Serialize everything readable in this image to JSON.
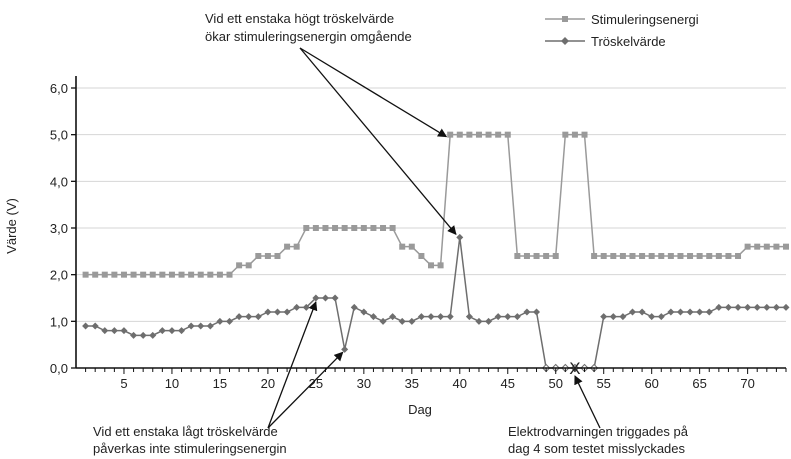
{
  "chart_data": {
    "type": "line",
    "xlabel": "Dag",
    "ylabel": "Värde (V)",
    "xlim": [
      0,
      74
    ],
    "ylim": [
      0,
      6
    ],
    "x_ticks": [
      5,
      10,
      15,
      20,
      25,
      30,
      35,
      40,
      45,
      50,
      55,
      60,
      65,
      70
    ],
    "y_ticks": [
      "0,0",
      "1,0",
      "2,0",
      "3,0",
      "4,0",
      "5,0",
      "6,0"
    ],
    "grid": "horizontal",
    "legend_position": "top-right",
    "colors": {
      "stim": "#9a9a9a",
      "thresh": "#6e6e6e",
      "axis": "#111111",
      "arrow": "#111111"
    },
    "series": [
      {
        "name": "Stimuleringsenergi",
        "marker": "square",
        "x": [
          1,
          2,
          3,
          4,
          5,
          6,
          7,
          8,
          9,
          10,
          11,
          12,
          13,
          14,
          15,
          16,
          17,
          18,
          19,
          20,
          21,
          22,
          23,
          24,
          25,
          26,
          27,
          28,
          29,
          30,
          31,
          32,
          33,
          34,
          35,
          36,
          37,
          38,
          39,
          40,
          41,
          42,
          43,
          44,
          45,
          46,
          47,
          48,
          49,
          50,
          51,
          52,
          53,
          54,
          55,
          56,
          57,
          58,
          59,
          60,
          61,
          62,
          63,
          64,
          65,
          66,
          67,
          68,
          69,
          70,
          71,
          72,
          73,
          74
        ],
        "values": [
          2.0,
          2.0,
          2.0,
          2.0,
          2.0,
          2.0,
          2.0,
          2.0,
          2.0,
          2.0,
          2.0,
          2.0,
          2.0,
          2.0,
          2.0,
          2.0,
          2.2,
          2.2,
          2.4,
          2.4,
          2.4,
          2.6,
          2.6,
          3.0,
          3.0,
          3.0,
          3.0,
          3.0,
          3.0,
          3.0,
          3.0,
          3.0,
          3.0,
          2.6,
          2.6,
          2.4,
          2.2,
          2.2,
          5.0,
          5.0,
          5.0,
          5.0,
          5.0,
          5.0,
          5.0,
          2.4,
          2.4,
          2.4,
          2.4,
          2.4,
          5.0,
          5.0,
          5.0,
          2.4,
          2.4,
          2.4,
          2.4,
          2.4,
          2.4,
          2.4,
          2.4,
          2.4,
          2.4,
          2.4,
          2.4,
          2.4,
          2.4,
          2.4,
          2.4,
          2.6,
          2.6,
          2.6,
          2.6,
          2.6
        ]
      },
      {
        "name": "Tröskelvärde",
        "marker": "diamond",
        "x": [
          1,
          2,
          3,
          4,
          5,
          6,
          7,
          8,
          9,
          10,
          11,
          12,
          13,
          14,
          15,
          16,
          17,
          18,
          19,
          20,
          21,
          22,
          23,
          24,
          25,
          26,
          27,
          28,
          29,
          30,
          31,
          32,
          33,
          34,
          35,
          36,
          37,
          38,
          39,
          40,
          41,
          42,
          43,
          44,
          45,
          46,
          47,
          48,
          49,
          50,
          51,
          52,
          53,
          54,
          55,
          56,
          57,
          58,
          59,
          60,
          61,
          62,
          63,
          64,
          65,
          66,
          67,
          68,
          69,
          70,
          71,
          72,
          73,
          74
        ],
        "values": [
          0.9,
          0.9,
          0.8,
          0.8,
          0.8,
          0.7,
          0.7,
          0.7,
          0.8,
          0.8,
          0.8,
          0.9,
          0.9,
          0.9,
          1.0,
          1.0,
          1.1,
          1.1,
          1.1,
          1.2,
          1.2,
          1.2,
          1.3,
          1.3,
          1.5,
          1.5,
          1.5,
          0.4,
          1.3,
          1.2,
          1.1,
          1.0,
          1.1,
          1.0,
          1.0,
          1.1,
          1.1,
          1.1,
          1.1,
          2.8,
          1.1,
          1.0,
          1.0,
          1.1,
          1.1,
          1.1,
          1.2,
          1.2,
          0.0,
          0.0,
          0.0,
          0.0,
          0.0,
          0.0,
          1.1,
          1.1,
          1.1,
          1.2,
          1.2,
          1.1,
          1.1,
          1.2,
          1.2,
          1.2,
          1.2,
          1.2,
          1.3,
          1.3,
          1.3,
          1.3,
          1.3,
          1.3,
          1.3,
          1.3
        ]
      }
    ],
    "annotations": {
      "top_line1": "Vid ett enstaka högt tröskelvärde",
      "top_line2": "ökar stimuleringsenergin omgående",
      "left_line1": "Vid ett enstaka lågt tröskelvärde",
      "left_line2": "påverkas inte stimuleringsenergin",
      "right_line1": "Elektrodvarningen triggades på",
      "right_line2": "dag 4 som testet misslyckades"
    },
    "failed_test_marker": "X"
  }
}
